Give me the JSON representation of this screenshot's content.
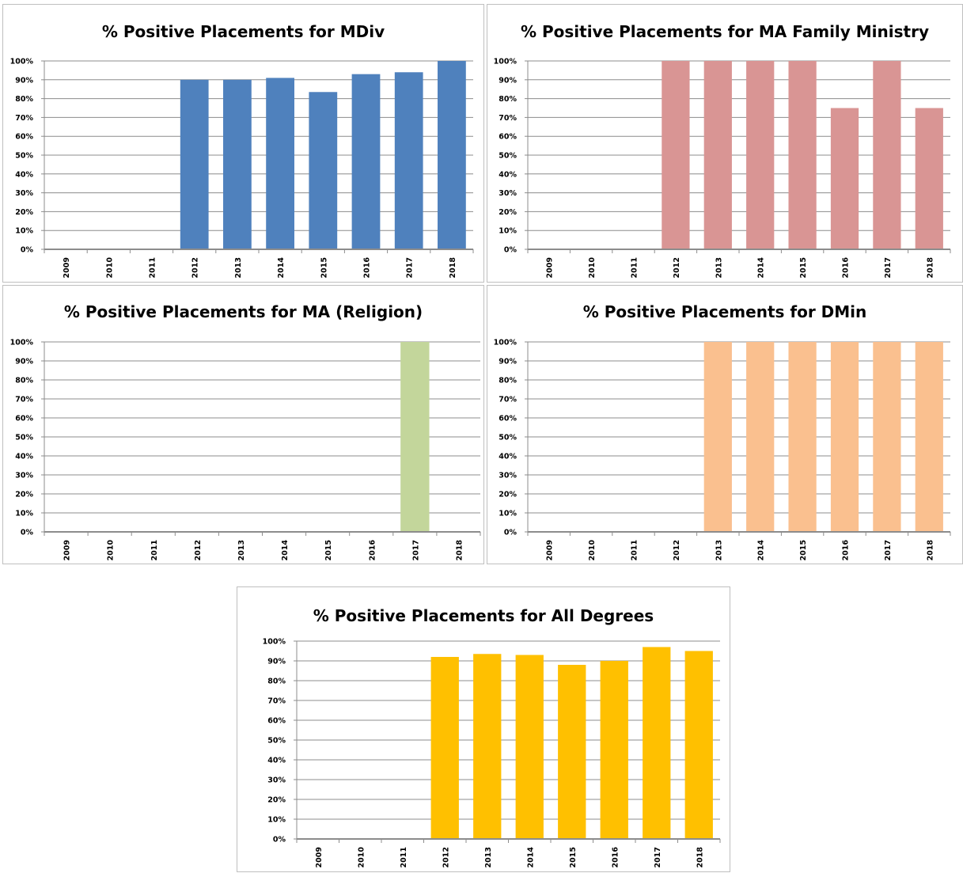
{
  "chart_data": [
    {
      "type": "bar",
      "title": "% Positive Placements for MDiv",
      "categories": [
        "2009",
        "2010",
        "2011",
        "2012",
        "2013",
        "2014",
        "2015",
        "2016",
        "2017",
        "2018"
      ],
      "values": [
        0,
        0,
        0,
        90,
        90,
        91,
        83.5,
        93,
        94,
        100
      ],
      "ylim": [
        0,
        100
      ],
      "yticks": [
        "0%",
        "10%",
        "20%",
        "30%",
        "40%",
        "50%",
        "60%",
        "70%",
        "80%",
        "90%",
        "100%"
      ],
      "color": "#4f81bd",
      "grid": true
    },
    {
      "type": "bar",
      "title": "% Positive Placements for MA Family Ministry",
      "categories": [
        "2009",
        "2010",
        "2011",
        "2012",
        "2013",
        "2014",
        "2015",
        "2016",
        "2017",
        "2018"
      ],
      "values": [
        0,
        0,
        0,
        100,
        100,
        100,
        100,
        75,
        100,
        75
      ],
      "ylim": [
        0,
        100
      ],
      "yticks": [
        "0%",
        "10%",
        "20%",
        "30%",
        "40%",
        "50%",
        "60%",
        "70%",
        "80%",
        "90%",
        "100%"
      ],
      "color": "#d99594",
      "grid": true
    },
    {
      "type": "bar",
      "title": "% Positive Placements for MA (Religion)",
      "categories": [
        "2009",
        "2010",
        "2011",
        "2012",
        "2013",
        "2014",
        "2015",
        "2016",
        "2017",
        "2018"
      ],
      "values": [
        0,
        0,
        0,
        0,
        0,
        0,
        0,
        0,
        100,
        0
      ],
      "ylim": [
        0,
        100
      ],
      "yticks": [
        "0%",
        "10%",
        "20%",
        "30%",
        "40%",
        "50%",
        "60%",
        "70%",
        "80%",
        "90%",
        "100%"
      ],
      "color": "#c3d69b",
      "grid": true
    },
    {
      "type": "bar",
      "title": "% Positive Placements for DMin",
      "categories": [
        "2009",
        "2010",
        "2011",
        "2012",
        "2013",
        "2014",
        "2015",
        "2016",
        "2017",
        "2018"
      ],
      "values": [
        0,
        0,
        0,
        0,
        100,
        100,
        100,
        100,
        100,
        100
      ],
      "ylim": [
        0,
        100
      ],
      "yticks": [
        "0%",
        "10%",
        "20%",
        "30%",
        "40%",
        "50%",
        "60%",
        "70%",
        "80%",
        "90%",
        "100%"
      ],
      "color": "#fac08f",
      "grid": true
    },
    {
      "type": "bar",
      "title": "% Positive Placements for All Degrees",
      "categories": [
        "2009",
        "2010",
        "2011",
        "2012",
        "2013",
        "2014",
        "2015",
        "2016",
        "2017",
        "2018"
      ],
      "values": [
        0,
        0,
        0,
        92,
        93.5,
        93,
        88,
        90,
        97,
        95
      ],
      "ylim": [
        0,
        100
      ],
      "yticks": [
        "0%",
        "10%",
        "20%",
        "30%",
        "40%",
        "50%",
        "60%",
        "70%",
        "80%",
        "90%",
        "100%"
      ],
      "color": "#ffc000",
      "grid": true
    }
  ]
}
